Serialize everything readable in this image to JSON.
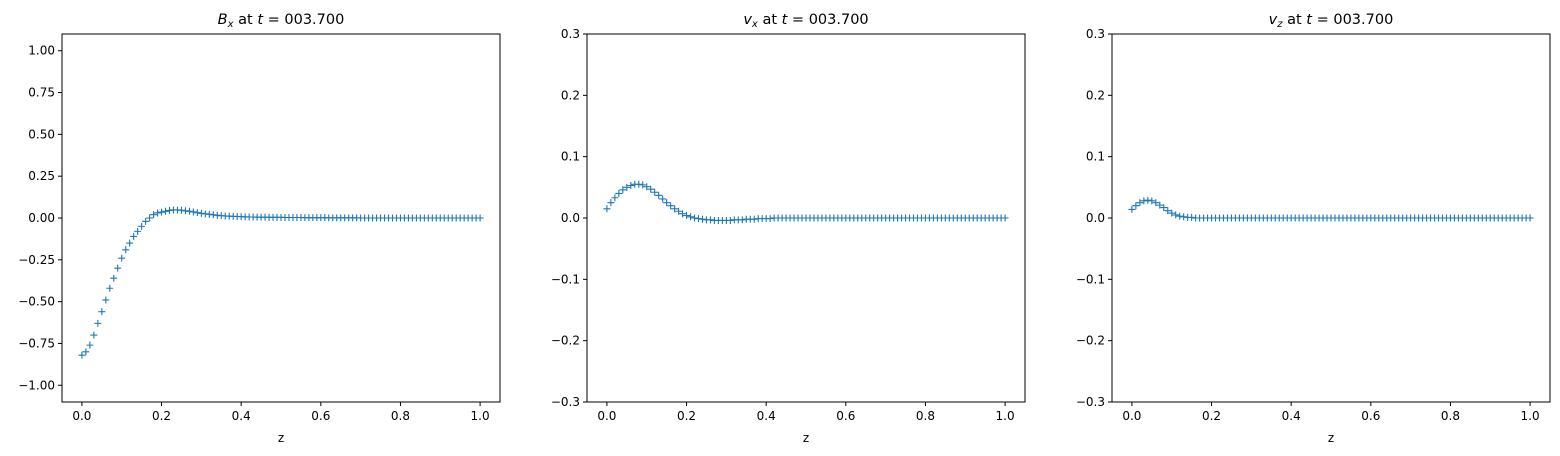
{
  "chart_data": [
    {
      "type": "scatter",
      "marker": "plus",
      "title_var": "B",
      "title_sub": "x",
      "title_rest": " at ",
      "title_t": "t",
      "title_eq": " = 003.700",
      "xlabel": "z",
      "ylabel": "",
      "xlim": [
        -0.05,
        1.05
      ],
      "ylim": [
        -1.1,
        1.1
      ],
      "xticks": [
        0.0,
        0.2,
        0.4,
        0.6,
        0.8,
        1.0
      ],
      "xtick_labels": [
        "0.0",
        "0.2",
        "0.4",
        "0.6",
        "0.8",
        "1.0"
      ],
      "yticks": [
        -1.0,
        -0.75,
        -0.5,
        -0.25,
        0.0,
        0.25,
        0.5,
        0.75,
        1.0
      ],
      "ytick_labels": [
        "−1.00",
        "−0.75",
        "−0.50",
        "−0.25",
        "0.00",
        "0.25",
        "0.50",
        "0.75",
        "1.00"
      ],
      "grid": false,
      "series": [
        {
          "x": [
            0.0,
            0.01,
            0.02,
            0.03,
            0.04,
            0.05,
            0.06,
            0.07,
            0.08,
            0.09,
            0.1,
            0.11,
            0.12,
            0.13,
            0.14,
            0.15,
            0.16,
            0.17,
            0.18,
            0.19,
            0.2,
            0.21,
            0.22,
            0.23,
            0.24,
            0.25,
            0.26,
            0.27,
            0.28,
            0.29,
            0.3,
            0.31,
            0.32,
            0.33,
            0.34,
            0.35,
            0.36,
            0.37,
            0.38,
            0.39,
            0.4,
            0.41,
            0.42,
            0.43,
            0.44,
            0.45,
            0.46,
            0.47,
            0.48,
            0.49,
            0.5,
            0.51,
            0.52,
            0.53,
            0.54,
            0.55,
            0.56,
            0.57,
            0.58,
            0.59,
            0.6,
            0.61,
            0.62,
            0.63,
            0.64,
            0.65,
            0.66,
            0.67,
            0.68,
            0.69,
            0.7,
            0.71,
            0.72,
            0.73,
            0.74,
            0.75,
            0.76,
            0.77,
            0.78,
            0.79,
            0.8,
            0.81,
            0.82,
            0.83,
            0.84,
            0.85,
            0.86,
            0.87,
            0.88,
            0.89,
            0.9,
            0.91,
            0.92,
            0.93,
            0.94,
            0.95,
            0.96,
            0.97,
            0.98,
            0.99,
            1.0
          ],
          "y": [
            -0.82,
            -0.8,
            -0.76,
            -0.7,
            -0.63,
            -0.56,
            -0.49,
            -0.42,
            -0.36,
            -0.3,
            -0.24,
            -0.19,
            -0.15,
            -0.11,
            -0.08,
            -0.05,
            -0.02,
            0.0,
            0.02,
            0.03,
            0.035,
            0.04,
            0.045,
            0.048,
            0.048,
            0.046,
            0.043,
            0.04,
            0.036,
            0.032,
            0.028,
            0.025,
            0.022,
            0.019,
            0.016,
            0.014,
            0.012,
            0.011,
            0.01,
            0.009,
            0.008,
            0.007,
            0.006,
            0.006,
            0.005,
            0.005,
            0.005,
            0.004,
            0.004,
            0.004,
            0.004,
            0.003,
            0.003,
            0.003,
            0.003,
            0.003,
            0.002,
            0.002,
            0.002,
            0.002,
            0.002,
            0.002,
            0.001,
            0.001,
            0.001,
            0.001,
            0.001,
            0.001,
            0.001,
            0.001,
            0.0,
            0.0,
            0.0,
            0.0,
            0.0,
            0.0,
            0.0,
            0.0,
            0.0,
            0.0,
            0.0,
            0.0,
            0.0,
            0.0,
            0.0,
            0.0,
            0.0,
            0.0,
            0.0,
            0.0,
            0.0,
            0.0,
            0.0,
            0.0,
            0.0,
            0.0,
            0.0,
            0.0,
            0.0,
            0.0,
            0.0
          ]
        }
      ]
    },
    {
      "type": "scatter",
      "marker": "plus",
      "title_var": "v",
      "title_sub": "x",
      "title_rest": " at ",
      "title_t": "t",
      "title_eq": " = 003.700",
      "xlabel": "z",
      "ylabel": "",
      "xlim": [
        -0.05,
        1.05
      ],
      "ylim": [
        -0.3,
        0.3
      ],
      "xticks": [
        0.0,
        0.2,
        0.4,
        0.6,
        0.8,
        1.0
      ],
      "xtick_labels": [
        "0.0",
        "0.2",
        "0.4",
        "0.6",
        "0.8",
        "1.0"
      ],
      "yticks": [
        -0.3,
        -0.2,
        -0.1,
        0.0,
        0.1,
        0.2,
        0.3
      ],
      "ytick_labels": [
        "−0.3",
        "−0.2",
        "−0.1",
        "0.0",
        "0.1",
        "0.2",
        "0.3"
      ],
      "grid": false,
      "series": [
        {
          "x": [
            0.0,
            0.01,
            0.02,
            0.03,
            0.04,
            0.05,
            0.06,
            0.07,
            0.08,
            0.09,
            0.1,
            0.11,
            0.12,
            0.13,
            0.14,
            0.15,
            0.16,
            0.17,
            0.18,
            0.19,
            0.2,
            0.21,
            0.22,
            0.23,
            0.24,
            0.25,
            0.26,
            0.27,
            0.28,
            0.29,
            0.3,
            0.31,
            0.32,
            0.33,
            0.34,
            0.35,
            0.36,
            0.37,
            0.38,
            0.39,
            0.4,
            0.41,
            0.42,
            0.43,
            0.44,
            0.45,
            0.46,
            0.47,
            0.48,
            0.49,
            0.5,
            0.51,
            0.52,
            0.53,
            0.54,
            0.55,
            0.56,
            0.57,
            0.58,
            0.59,
            0.6,
            0.61,
            0.62,
            0.63,
            0.64,
            0.65,
            0.66,
            0.67,
            0.68,
            0.69,
            0.7,
            0.71,
            0.72,
            0.73,
            0.74,
            0.75,
            0.76,
            0.77,
            0.78,
            0.79,
            0.8,
            0.81,
            0.82,
            0.83,
            0.84,
            0.85,
            0.86,
            0.87,
            0.88,
            0.89,
            0.9,
            0.91,
            0.92,
            0.93,
            0.94,
            0.95,
            0.96,
            0.97,
            0.98,
            0.99,
            1.0
          ],
          "y": [
            0.015,
            0.025,
            0.033,
            0.04,
            0.046,
            0.05,
            0.053,
            0.055,
            0.055,
            0.054,
            0.051,
            0.047,
            0.042,
            0.037,
            0.031,
            0.025,
            0.02,
            0.015,
            0.011,
            0.007,
            0.004,
            0.002,
            0.0,
            -0.001,
            -0.002,
            -0.003,
            -0.003,
            -0.004,
            -0.004,
            -0.004,
            -0.004,
            -0.004,
            -0.003,
            -0.003,
            -0.003,
            -0.002,
            -0.002,
            -0.002,
            -0.001,
            -0.001,
            -0.001,
            -0.001,
            0.0,
            0.0,
            0.0,
            0.0,
            0.0,
            0.0,
            0.0,
            0.0,
            0.0,
            0.0,
            0.0,
            0.0,
            0.0,
            0.0,
            0.0,
            0.0,
            0.0,
            0.0,
            0.0,
            0.0,
            0.0,
            0.0,
            0.0,
            0.0,
            0.0,
            0.0,
            0.0,
            0.0,
            0.0,
            0.0,
            0.0,
            0.0,
            0.0,
            0.0,
            0.0,
            0.0,
            0.0,
            0.0,
            0.0,
            0.0,
            0.0,
            0.0,
            0.0,
            0.0,
            0.0,
            0.0,
            0.0,
            0.0,
            0.0,
            0.0,
            0.0,
            0.0,
            0.0,
            0.0,
            0.0,
            0.0,
            0.0,
            0.0,
            0.0
          ]
        }
      ]
    },
    {
      "type": "scatter",
      "marker": "plus",
      "title_var": "v",
      "title_sub": "z",
      "title_rest": " at ",
      "title_t": "t",
      "title_eq": " = 003.700",
      "xlabel": "z",
      "ylabel": "",
      "xlim": [
        -0.05,
        1.05
      ],
      "ylim": [
        -0.3,
        0.3
      ],
      "xticks": [
        0.0,
        0.2,
        0.4,
        0.6,
        0.8,
        1.0
      ],
      "xtick_labels": [
        "0.0",
        "0.2",
        "0.4",
        "0.6",
        "0.8",
        "1.0"
      ],
      "yticks": [
        -0.3,
        -0.2,
        -0.1,
        0.0,
        0.1,
        0.2,
        0.3
      ],
      "ytick_labels": [
        "−0.3",
        "−0.2",
        "−0.1",
        "0.0",
        "0.1",
        "0.2",
        "0.3"
      ],
      "grid": false,
      "series": [
        {
          "x": [
            0.0,
            0.01,
            0.02,
            0.03,
            0.04,
            0.05,
            0.06,
            0.07,
            0.08,
            0.09,
            0.1,
            0.11,
            0.12,
            0.13,
            0.14,
            0.15,
            0.16,
            0.17,
            0.18,
            0.19,
            0.2,
            0.21,
            0.22,
            0.23,
            0.24,
            0.25,
            0.26,
            0.27,
            0.28,
            0.29,
            0.3,
            0.31,
            0.32,
            0.33,
            0.34,
            0.35,
            0.36,
            0.37,
            0.38,
            0.39,
            0.4,
            0.41,
            0.42,
            0.43,
            0.44,
            0.45,
            0.46,
            0.47,
            0.48,
            0.49,
            0.5,
            0.51,
            0.52,
            0.53,
            0.54,
            0.55,
            0.56,
            0.57,
            0.58,
            0.59,
            0.6,
            0.61,
            0.62,
            0.63,
            0.64,
            0.65,
            0.66,
            0.67,
            0.68,
            0.69,
            0.7,
            0.71,
            0.72,
            0.73,
            0.74,
            0.75,
            0.76,
            0.77,
            0.78,
            0.79,
            0.8,
            0.81,
            0.82,
            0.83,
            0.84,
            0.85,
            0.86,
            0.87,
            0.88,
            0.89,
            0.9,
            0.91,
            0.92,
            0.93,
            0.94,
            0.95,
            0.96,
            0.97,
            0.98,
            0.99,
            1.0
          ],
          "y": [
            0.014,
            0.02,
            0.025,
            0.028,
            0.029,
            0.028,
            0.025,
            0.021,
            0.017,
            0.012,
            0.008,
            0.005,
            0.003,
            0.002,
            0.001,
            0.001,
            0.0,
            0.0,
            0.0,
            0.0,
            0.0,
            0.0,
            0.0,
            0.0,
            0.0,
            0.0,
            0.0,
            0.0,
            0.0,
            0.0,
            0.0,
            0.0,
            0.0,
            0.0,
            0.0,
            0.0,
            0.0,
            0.0,
            0.0,
            0.0,
            0.0,
            0.0,
            0.0,
            0.0,
            0.0,
            0.0,
            0.0,
            0.0,
            0.0,
            0.0,
            0.0,
            0.0,
            0.0,
            0.0,
            0.0,
            0.0,
            0.0,
            0.0,
            0.0,
            0.0,
            0.0,
            0.0,
            0.0,
            0.0,
            0.0,
            0.0,
            0.0,
            0.0,
            0.0,
            0.0,
            0.0,
            0.0,
            0.0,
            0.0,
            0.0,
            0.0,
            0.0,
            0.0,
            0.0,
            0.0,
            0.0,
            0.0,
            0.0,
            0.0,
            0.0,
            0.0,
            0.0,
            0.0,
            0.0,
            0.0,
            0.0,
            0.0,
            0.0,
            0.0,
            0.0,
            0.0,
            0.0,
            0.0,
            0.0,
            0.0,
            0.0
          ]
        }
      ]
    }
  ],
  "colors": {
    "series": "#1f77b4",
    "axes": "#000000",
    "background": "#ffffff"
  }
}
